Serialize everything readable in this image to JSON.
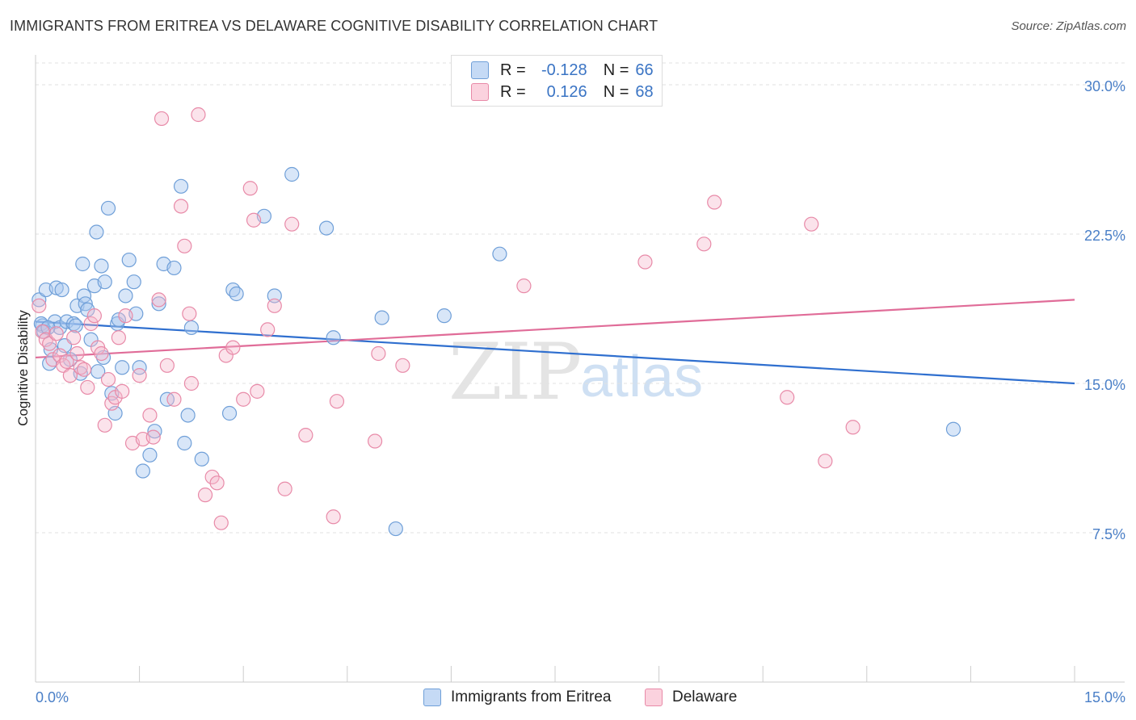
{
  "title": "IMMIGRANTS FROM ERITREA VS DELAWARE COGNITIVE DISABILITY CORRELATION CHART",
  "source": "Source: ZipAtlas.com",
  "watermark": {
    "zip": "ZIP",
    "atlas": "atlas"
  },
  "legend": {
    "r_label": "R =",
    "n_label": "N =",
    "series": [
      {
        "name": "Immigrants from Eritrea",
        "r": "-0.128",
        "n": "66",
        "fill": "#a9c8f0",
        "stroke": "#6f9fd8"
      },
      {
        "name": "Delaware",
        "r": "0.126",
        "n": "68",
        "fill": "#f6b9cc",
        "stroke": "#e88aa8"
      }
    ]
  },
  "chart_data": {
    "type": "scatter",
    "title": "IMMIGRANTS FROM ERITREA VS DELAWARE COGNITIVE DISABILITY CORRELATION CHART",
    "xlabel": "",
    "ylabel": "Cognitive Disability",
    "xlim": [
      0,
      15
    ],
    "ylim": [
      0,
      31.5
    ],
    "x_tick_labels": [
      {
        "value": 0,
        "label": "0.0%"
      },
      {
        "value": 15,
        "label": "15.0%"
      }
    ],
    "y_tick_labels": [
      {
        "value": 30,
        "label": "30.0%"
      },
      {
        "value": 22.5,
        "label": "22.5%"
      },
      {
        "value": 15,
        "label": "15.0%"
      },
      {
        "value": 7.5,
        "label": "7.5%"
      }
    ],
    "grid": true,
    "series": [
      {
        "name": "Immigrants from Eritrea",
        "color": "#6f9fd8",
        "trend": {
          "x": [
            0,
            15
          ],
          "y": [
            18.1,
            15.0
          ],
          "color": "#2f6fcf"
        },
        "points": [
          [
            0.05,
            19.2
          ],
          [
            0.1,
            17.9
          ],
          [
            0.15,
            19.7
          ],
          [
            0.2,
            16.0
          ],
          [
            0.22,
            16.7
          ],
          [
            0.28,
            18.1
          ],
          [
            0.3,
            19.8
          ],
          [
            0.35,
            17.8
          ],
          [
            0.38,
            19.7
          ],
          [
            0.42,
            16.9
          ],
          [
            0.45,
            18.1
          ],
          [
            0.5,
            16.2
          ],
          [
            0.55,
            18.0
          ],
          [
            0.58,
            17.9
          ],
          [
            0.6,
            18.9
          ],
          [
            0.65,
            15.5
          ],
          [
            0.68,
            21.0
          ],
          [
            0.7,
            19.4
          ],
          [
            0.72,
            19.0
          ],
          [
            0.75,
            18.7
          ],
          [
            0.8,
            17.2
          ],
          [
            0.85,
            19.9
          ],
          [
            0.88,
            22.6
          ],
          [
            0.9,
            15.6
          ],
          [
            0.95,
            20.9
          ],
          [
            0.98,
            16.3
          ],
          [
            1.0,
            20.1
          ],
          [
            1.05,
            23.8
          ],
          [
            1.1,
            14.5
          ],
          [
            1.15,
            13.5
          ],
          [
            1.18,
            18.0
          ],
          [
            1.2,
            18.2
          ],
          [
            1.25,
            15.8
          ],
          [
            1.3,
            19.4
          ],
          [
            1.35,
            21.2
          ],
          [
            1.42,
            20.1
          ],
          [
            1.45,
            18.5
          ],
          [
            1.5,
            15.8
          ],
          [
            1.55,
            10.6
          ],
          [
            1.65,
            11.4
          ],
          [
            1.72,
            12.6
          ],
          [
            1.78,
            19.0
          ],
          [
            1.85,
            21.0
          ],
          [
            1.9,
            14.2
          ],
          [
            2.0,
            20.8
          ],
          [
            2.1,
            24.9
          ],
          [
            2.15,
            12.0
          ],
          [
            2.2,
            13.4
          ],
          [
            2.25,
            17.8
          ],
          [
            2.4,
            11.2
          ],
          [
            2.8,
            13.5
          ],
          [
            2.85,
            19.7
          ],
          [
            2.9,
            19.5
          ],
          [
            3.3,
            23.4
          ],
          [
            3.45,
            19.4
          ],
          [
            3.7,
            25.5
          ],
          [
            4.2,
            22.8
          ],
          [
            4.3,
            17.3
          ],
          [
            5.0,
            18.3
          ],
          [
            5.2,
            7.7
          ],
          [
            5.9,
            18.4
          ],
          [
            6.7,
            21.5
          ],
          [
            13.25,
            12.7
          ],
          [
            0.08,
            18.0
          ],
          [
            0.12,
            17.6
          ],
          [
            0.18,
            17.8
          ]
        ]
      },
      {
        "name": "Delaware",
        "color": "#e88aa8",
        "trend": {
          "x": [
            0,
            15
          ],
          "y": [
            16.3,
            19.2
          ],
          "color": "#e06c98"
        },
        "points": [
          [
            0.05,
            18.9
          ],
          [
            0.1,
            17.6
          ],
          [
            0.15,
            17.2
          ],
          [
            0.2,
            17.0
          ],
          [
            0.25,
            16.2
          ],
          [
            0.3,
            17.5
          ],
          [
            0.35,
            16.4
          ],
          [
            0.4,
            15.9
          ],
          [
            0.45,
            16.1
          ],
          [
            0.5,
            15.4
          ],
          [
            0.55,
            17.3
          ],
          [
            0.6,
            16.5
          ],
          [
            0.65,
            15.8
          ],
          [
            0.7,
            15.7
          ],
          [
            0.75,
            14.8
          ],
          [
            0.8,
            18.0
          ],
          [
            0.85,
            18.4
          ],
          [
            0.9,
            16.8
          ],
          [
            0.95,
            16.5
          ],
          [
            1.0,
            12.9
          ],
          [
            1.05,
            15.2
          ],
          [
            1.1,
            14.0
          ],
          [
            1.15,
            14.3
          ],
          [
            1.2,
            17.3
          ],
          [
            1.25,
            14.6
          ],
          [
            1.3,
            18.4
          ],
          [
            1.4,
            12.0
          ],
          [
            1.5,
            15.4
          ],
          [
            1.55,
            12.2
          ],
          [
            1.65,
            13.4
          ],
          [
            1.7,
            12.3
          ],
          [
            1.78,
            19.2
          ],
          [
            1.82,
            28.3
          ],
          [
            1.9,
            15.9
          ],
          [
            2.0,
            14.2
          ],
          [
            2.1,
            23.9
          ],
          [
            2.15,
            21.9
          ],
          [
            2.22,
            18.5
          ],
          [
            2.25,
            15.0
          ],
          [
            2.35,
            28.5
          ],
          [
            2.45,
            9.4
          ],
          [
            2.55,
            10.3
          ],
          [
            2.62,
            10.0
          ],
          [
            2.68,
            8.0
          ],
          [
            2.75,
            16.4
          ],
          [
            2.85,
            16.8
          ],
          [
            3.0,
            14.2
          ],
          [
            3.1,
            24.8
          ],
          [
            3.15,
            23.2
          ],
          [
            3.2,
            14.6
          ],
          [
            3.35,
            17.7
          ],
          [
            3.45,
            18.9
          ],
          [
            3.6,
            9.7
          ],
          [
            3.7,
            23.0
          ],
          [
            3.9,
            12.4
          ],
          [
            4.3,
            8.3
          ],
          [
            4.35,
            14.1
          ],
          [
            4.9,
            12.1
          ],
          [
            4.95,
            16.5
          ],
          [
            5.3,
            15.9
          ],
          [
            7.05,
            19.9
          ],
          [
            8.8,
            21.1
          ],
          [
            9.65,
            22.0
          ],
          [
            9.8,
            24.1
          ],
          [
            10.85,
            14.3
          ],
          [
            11.2,
            23.0
          ],
          [
            11.4,
            11.1
          ],
          [
            11.8,
            12.8
          ]
        ]
      }
    ]
  }
}
